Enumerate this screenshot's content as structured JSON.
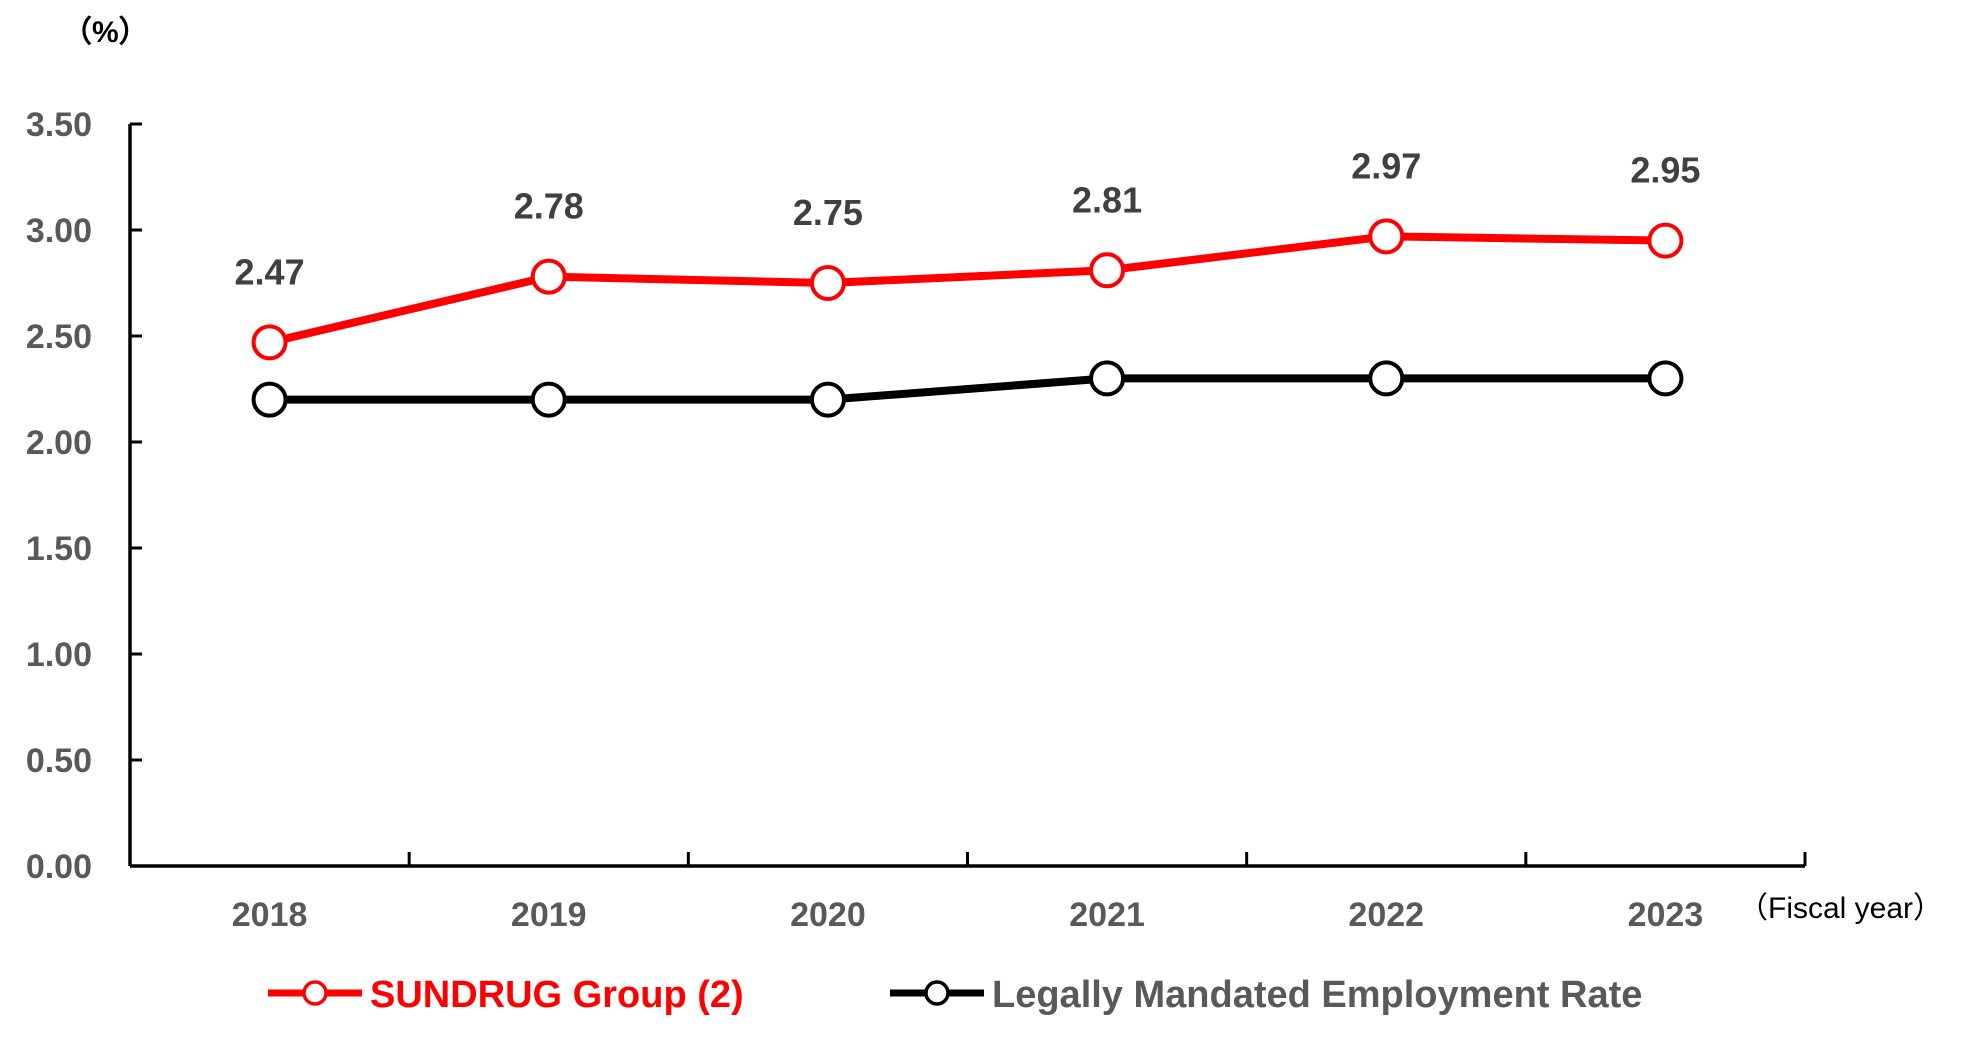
{
  "chart_data": {
    "type": "line",
    "y_unit_label": "（%）",
    "x_unit_label": "（Fiscal year）",
    "categories": [
      "2018",
      "2019",
      "2020",
      "2021",
      "2022",
      "2023"
    ],
    "ylim": [
      0,
      3.5
    ],
    "yticks": [
      "0.00",
      "0.50",
      "1.00",
      "1.50",
      "2.00",
      "2.50",
      "3.00",
      "3.50"
    ],
    "ytick_values": [
      0,
      0.5,
      1.0,
      1.5,
      2.0,
      2.5,
      3.0,
      3.5
    ],
    "grid": false,
    "legend_position": "bottom",
    "series": [
      {
        "name": "SUNDRUG Group (2)",
        "color": "#ff0000",
        "values": [
          2.47,
          2.78,
          2.75,
          2.81,
          2.97,
          2.95
        ],
        "data_labels": [
          "2.47",
          "2.78",
          "2.75",
          "2.81",
          "2.97",
          "2.95"
        ],
        "marker": "open-circle"
      },
      {
        "name": "Legally Mandated Employment Rate",
        "color": "#000000",
        "values": [
          2.2,
          2.2,
          2.2,
          2.3,
          2.3,
          2.3
        ],
        "marker": "open-circle"
      }
    ]
  }
}
